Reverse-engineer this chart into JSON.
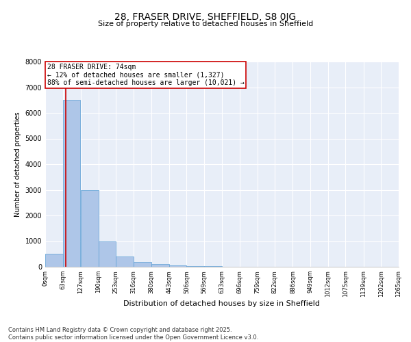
{
  "title": "28, FRASER DRIVE, SHEFFIELD, S8 0JG",
  "subtitle": "Size of property relative to detached houses in Sheffield",
  "xlabel": "Distribution of detached houses by size in Sheffield",
  "ylabel": "Number of detached properties",
  "bar_color": "#aec6e8",
  "bar_edge_color": "#5a9fd4",
  "background_color": "#e8eef8",
  "grid_color": "#ffffff",
  "annotation_text": "28 FRASER DRIVE: 74sqm\n← 12% of detached houses are smaller (1,327)\n88% of semi-detached houses are larger (10,021) →",
  "property_size": 74,
  "bin_edges": [
    0,
    63,
    127,
    190,
    253,
    316,
    380,
    443,
    506,
    569,
    633,
    696,
    759,
    822,
    886,
    949,
    1012,
    1075,
    1139,
    1202,
    1265
  ],
  "bar_heights": [
    500,
    6500,
    3000,
    1000,
    400,
    200,
    100,
    50,
    30,
    20,
    10,
    8,
    5,
    4,
    3,
    2,
    1,
    1,
    1,
    1
  ],
  "ylim": [
    0,
    8000
  ],
  "yticks": [
    0,
    1000,
    2000,
    3000,
    4000,
    5000,
    6000,
    7000,
    8000
  ],
  "footer_text": "Contains HM Land Registry data © Crown copyright and database right 2025.\nContains public sector information licensed under the Open Government Licence v3.0.",
  "red_line_color": "#cc0000",
  "annotation_box_color": "#cc0000",
  "title_fontsize": 10,
  "subtitle_fontsize": 8,
  "ylabel_fontsize": 7,
  "xlabel_fontsize": 8,
  "ytick_fontsize": 7,
  "xtick_fontsize": 6,
  "footer_fontsize": 6,
  "annot_fontsize": 7
}
